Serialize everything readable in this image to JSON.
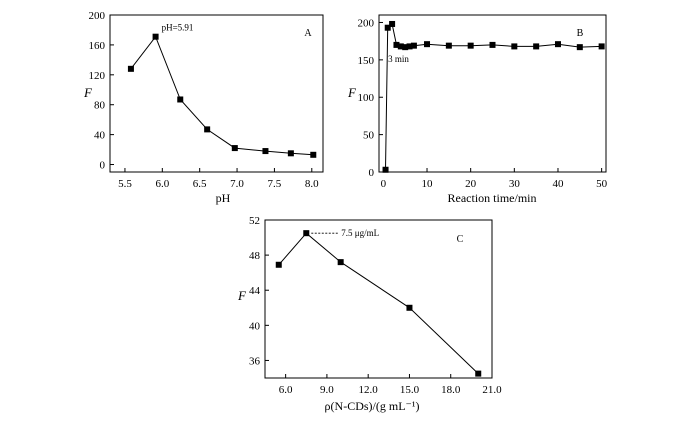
{
  "chart_data": [
    {
      "panel": "A",
      "type": "line",
      "xlabel": "pH",
      "ylabel": "F",
      "xlim": [
        5.3,
        8.15
      ],
      "ylim": [
        -10,
        200
      ],
      "xticks": [
        5.5,
        6.0,
        6.5,
        7.0,
        7.5,
        8.0
      ],
      "xtick_labels": [
        "5.5",
        "6.0",
        "6.5",
        "7.0",
        "7.5",
        "8.0"
      ],
      "yticks": [
        0,
        40,
        80,
        120,
        160,
        200
      ],
      "ytick_labels": [
        "0",
        "40",
        "80",
        "120",
        "160",
        "200"
      ],
      "annotation": "pH=5.91",
      "marker": "square",
      "x": [
        5.58,
        5.91,
        6.24,
        6.6,
        6.97,
        7.38,
        7.72,
        8.02
      ],
      "y": [
        128,
        171,
        87,
        47,
        22,
        18,
        15,
        13
      ],
      "grid": false
    },
    {
      "panel": "B",
      "type": "line",
      "xlabel": "Reaction time/min",
      "ylabel": "F",
      "xlim": [
        -1,
        51
      ],
      "ylim": [
        0,
        210
      ],
      "xticks": [
        0,
        10,
        20,
        30,
        40,
        50
      ],
      "xtick_labels": [
        "0",
        "10",
        "20",
        "30",
        "40",
        "50"
      ],
      "yticks": [
        0,
        50,
        100,
        150,
        200
      ],
      "ytick_labels": [
        "0",
        "50",
        "100",
        "150",
        "200"
      ],
      "annotation": "3 min",
      "marker": "square",
      "x": [
        0.5,
        1,
        2,
        3,
        4,
        5,
        6,
        7,
        10,
        15,
        20,
        25,
        30,
        35,
        40,
        45,
        50
      ],
      "y": [
        3,
        193,
        198,
        170,
        168,
        167,
        168,
        169,
        171,
        169,
        169,
        170,
        168,
        168,
        171,
        167,
        168
      ],
      "grid": false
    },
    {
      "panel": "C",
      "type": "line",
      "xlabel": "ρ(N-CDs)/(g mL⁻¹)",
      "ylabel": "F",
      "xlim": [
        4.5,
        21.0
      ],
      "ylim": [
        34,
        52
      ],
      "xticks": [
        6.0,
        9.0,
        12.0,
        15.0,
        18.0,
        21.0
      ],
      "xtick_labels": [
        "6.0",
        "9.0",
        "12.0",
        "15.0",
        "18.0",
        "21.0"
      ],
      "yticks": [
        36,
        40,
        44,
        48,
        52
      ],
      "ytick_labels": [
        "36",
        "40",
        "44",
        "48",
        "52"
      ],
      "annotation": "7.5 μg/mL",
      "marker": "square",
      "x": [
        5.5,
        7.5,
        10.0,
        15.0,
        20.0
      ],
      "y": [
        46.9,
        50.5,
        47.2,
        42.0,
        34.5
      ],
      "grid": false
    }
  ]
}
